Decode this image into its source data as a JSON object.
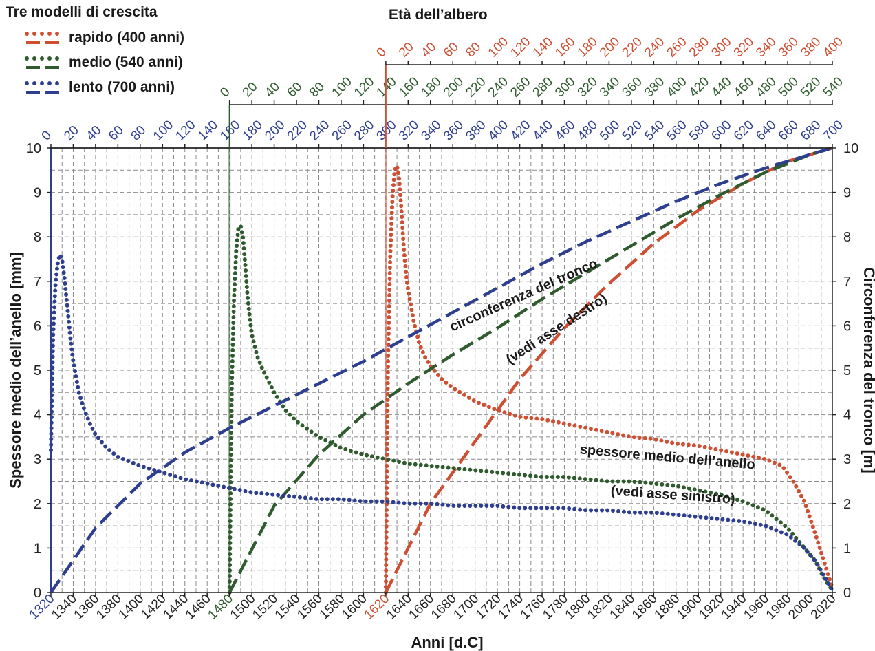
{
  "chart_data": {
    "type": "line",
    "title": "",
    "legend_title": "Tre modelli di crescita",
    "top_axis_title": "Età dell’albero",
    "xlabel": "Anni [d.C]",
    "ylabel_left": "Spessore medio dell’anello [mm]",
    "ylabel_right": "Circonferenza del tronco [m]",
    "xlim": [
      1320,
      2020
    ],
    "ylim_left": [
      0,
      10
    ],
    "ylim_right": [
      0,
      10
    ],
    "x_ticks": [
      1320,
      1340,
      1360,
      1380,
      1400,
      1420,
      1440,
      1460,
      1480,
      1500,
      1520,
      1540,
      1560,
      1580,
      1600,
      1620,
      1640,
      1660,
      1680,
      1700,
      1720,
      1740,
      1760,
      1780,
      1800,
      1820,
      1840,
      1860,
      1880,
      1900,
      1920,
      1940,
      1960,
      1980,
      2000,
      2020
    ],
    "y_ticks": [
      0,
      1,
      2,
      3,
      4,
      5,
      6,
      7,
      8,
      9,
      10
    ],
    "grid": true,
    "legend_position": "top-left",
    "annotations": [
      {
        "text": "circonferenza del tronco",
        "at": [
          1745,
          6.6
        ],
        "rotate": -24
      },
      {
        "text": "(vedi asse destro)",
        "at": [
          1775,
          5.85
        ],
        "rotate": -33
      },
      {
        "text": "spessore medio dell’anello",
        "at": [
          1872,
          2.95
        ],
        "rotate": 5
      },
      {
        "text": "(vedi asse sinistro)",
        "at": [
          1877,
          2.1
        ],
        "rotate": 4
      }
    ],
    "models": [
      {
        "name": "rapido (400 anni)",
        "color": "#cf4f33",
        "start_year": 1620,
        "age_ticks": [
          0,
          20,
          40,
          60,
          80,
          100,
          120,
          140,
          160,
          180,
          200,
          220,
          240,
          260,
          280,
          300,
          320,
          340,
          360,
          380,
          400
        ],
        "ring_width_mm": {
          "x": [
            1620,
            1621,
            1622,
            1624,
            1626,
            1628,
            1630,
            1632,
            1634,
            1636,
            1638,
            1640,
            1645,
            1650,
            1655,
            1660,
            1670,
            1680,
            1690,
            1700,
            1720,
            1740,
            1760,
            1780,
            1800,
            1820,
            1840,
            1860,
            1880,
            1900,
            1920,
            1940,
            1960,
            1975,
            1985,
            1995,
            2005,
            2010,
            2015,
            2020
          ],
          "y": [
            0,
            2.8,
            5.2,
            7.6,
            8.9,
            9.5,
            9.6,
            9.3,
            8.6,
            7.8,
            7.2,
            6.8,
            6.1,
            5.6,
            5.3,
            5.1,
            4.8,
            4.6,
            4.45,
            4.3,
            4.1,
            3.95,
            3.9,
            3.8,
            3.7,
            3.6,
            3.5,
            3.45,
            3.35,
            3.3,
            3.2,
            3.1,
            3.0,
            2.85,
            2.5,
            2.05,
            1.3,
            0.9,
            0.5,
            0.1
          ]
        },
        "circumference_m": {
          "x": [
            1620,
            1660,
            1700,
            1740,
            1780,
            1820,
            1860,
            1900,
            1940,
            1980,
            2020
          ],
          "y": [
            0,
            2.0,
            3.4,
            4.8,
            5.95,
            6.95,
            7.85,
            8.6,
            9.2,
            9.7,
            10.0
          ]
        }
      },
      {
        "name": "medio (540 anni)",
        "color": "#2f5b2e",
        "start_year": 1480,
        "age_ticks": [
          0,
          20,
          40,
          60,
          80,
          100,
          120,
          140,
          160,
          180,
          200,
          220,
          240,
          260,
          280,
          300,
          320,
          340,
          360,
          380,
          400,
          420,
          440,
          460,
          480,
          500,
          520,
          540
        ],
        "ring_width_mm": {
          "x": [
            1480,
            1481,
            1482,
            1484,
            1486,
            1488,
            1490,
            1492,
            1494,
            1496,
            1498,
            1500,
            1505,
            1510,
            1520,
            1530,
            1540,
            1560,
            1580,
            1600,
            1620,
            1640,
            1660,
            1680,
            1700,
            1720,
            1740,
            1760,
            1780,
            1800,
            1820,
            1840,
            1860,
            1880,
            1900,
            1920,
            1940,
            1960,
            1980,
            1995,
            2005,
            2012,
            2020
          ],
          "y": [
            0,
            2.5,
            4.6,
            6.6,
            7.7,
            8.2,
            8.25,
            8.0,
            7.4,
            6.7,
            6.2,
            5.8,
            5.3,
            5.0,
            4.5,
            4.1,
            3.85,
            3.5,
            3.25,
            3.1,
            3.0,
            2.9,
            2.85,
            2.8,
            2.75,
            2.7,
            2.65,
            2.6,
            2.6,
            2.55,
            2.5,
            2.5,
            2.45,
            2.4,
            2.3,
            2.2,
            2.05,
            1.85,
            1.45,
            1.0,
            0.7,
            0.35,
            0.05
          ]
        },
        "circumference_m": {
          "x": [
            1480,
            1520,
            1560,
            1600,
            1640,
            1680,
            1720,
            1760,
            1800,
            1840,
            1880,
            1920,
            1960,
            2000,
            2020
          ],
          "y": [
            0,
            1.95,
            3.1,
            4.0,
            4.7,
            5.35,
            5.95,
            6.6,
            7.2,
            7.8,
            8.4,
            8.95,
            9.45,
            9.85,
            10.0
          ]
        }
      },
      {
        "name": "lento (700 anni)",
        "color": "#2f3f8f",
        "start_year": 1320,
        "age_ticks": [
          0,
          20,
          40,
          60,
          80,
          100,
          120,
          140,
          160,
          180,
          200,
          220,
          240,
          260,
          280,
          300,
          320,
          340,
          360,
          380,
          400,
          420,
          440,
          460,
          480,
          500,
          520,
          540,
          560,
          580,
          600,
          620,
          640,
          660,
          680,
          700
        ],
        "ring_width_mm": {
          "x": [
            1320,
            1321,
            1322,
            1324,
            1326,
            1328,
            1330,
            1332,
            1334,
            1336,
            1338,
            1340,
            1345,
            1350,
            1355,
            1360,
            1370,
            1380,
            1400,
            1420,
            1440,
            1460,
            1480,
            1500,
            1520,
            1540,
            1560,
            1580,
            1600,
            1620,
            1640,
            1660,
            1680,
            1700,
            1720,
            1740,
            1760,
            1780,
            1800,
            1820,
            1840,
            1860,
            1880,
            1900,
            1920,
            1940,
            1960,
            1980,
            1995,
            2005,
            2012,
            2020
          ],
          "y": [
            3.2,
            4.5,
            5.8,
            6.9,
            7.4,
            7.6,
            7.5,
            7.1,
            6.6,
            6.1,
            5.6,
            5.2,
            4.5,
            4.1,
            3.8,
            3.55,
            3.25,
            3.05,
            2.85,
            2.7,
            2.55,
            2.45,
            2.35,
            2.25,
            2.2,
            2.15,
            2.1,
            2.1,
            2.05,
            2.05,
            2.0,
            2.0,
            1.95,
            1.95,
            1.95,
            1.9,
            1.9,
            1.9,
            1.85,
            1.85,
            1.8,
            1.8,
            1.75,
            1.7,
            1.65,
            1.6,
            1.5,
            1.3,
            1.0,
            0.7,
            0.4,
            0.05
          ]
        },
        "circumference_m": {
          "x": [
            1320,
            1360,
            1400,
            1440,
            1480,
            1520,
            1560,
            1600,
            1640,
            1680,
            1720,
            1760,
            1800,
            1840,
            1880,
            1920,
            1960,
            2000,
            2020
          ],
          "y": [
            0,
            1.45,
            2.45,
            3.15,
            3.7,
            4.2,
            4.7,
            5.2,
            5.75,
            6.3,
            6.85,
            7.4,
            7.9,
            8.35,
            8.8,
            9.2,
            9.55,
            9.85,
            10.0
          ]
        }
      }
    ]
  }
}
